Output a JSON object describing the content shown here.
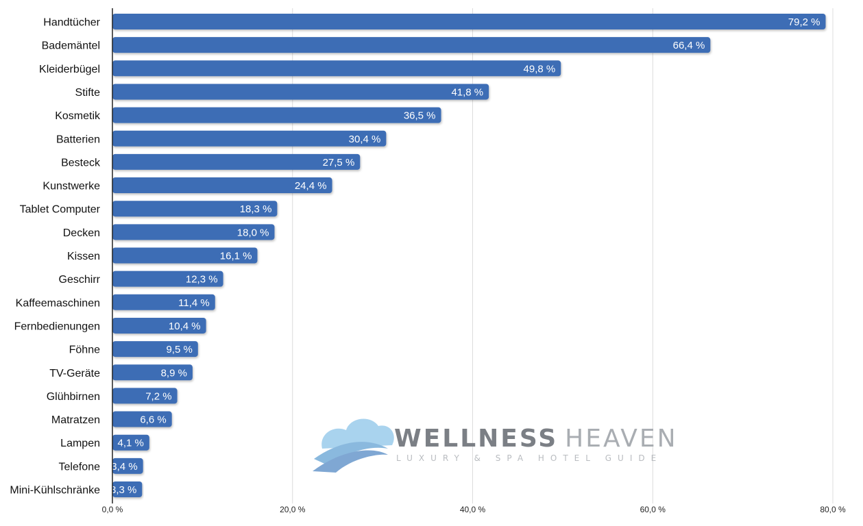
{
  "chart_data": {
    "type": "bar",
    "orientation": "horizontal",
    "categories": [
      "Handtücher",
      "Bademäntel",
      "Kleiderbügel",
      "Stifte",
      "Kosmetik",
      "Batterien",
      "Besteck",
      "Kunstwerke",
      "Tablet Computer",
      "Decken",
      "Kissen",
      "Geschirr",
      "Kaffeemaschinen",
      "Fernbedienungen",
      "Föhne",
      "TV-Geräte",
      "Glühbirnen",
      "Matratzen",
      "Lampen",
      "Telefone",
      "Mini-Kühlschränke"
    ],
    "values": [
      79.2,
      66.4,
      49.8,
      41.8,
      36.5,
      30.4,
      27.5,
      24.4,
      18.3,
      18.0,
      16.1,
      12.3,
      11.4,
      10.4,
      9.5,
      8.9,
      7.2,
      6.6,
      4.1,
      3.4,
      3.3
    ],
    "value_labels": [
      "79,2 %",
      "66,4 %",
      "49,8 %",
      "41,8 %",
      "36,5 %",
      "30,4 %",
      "27,5 %",
      "24,4 %",
      "18,3 %",
      "18,0 %",
      "16,1 %",
      "12,3 %",
      "11,4 %",
      "10,4 %",
      "9,5 %",
      "8,9 %",
      "7,2 %",
      "6,6 %",
      "4,1 %",
      "3,4 %",
      "3,3 %"
    ],
    "x_ticks": [
      0,
      20,
      40,
      60,
      80
    ],
    "x_tick_labels": [
      "0,0 %",
      "20,0 %",
      "40,0 %",
      "60,0 %",
      "80,0 %"
    ],
    "xlim": [
      0,
      80
    ],
    "grid": true,
    "bar_color": "#3e6db5"
  },
  "watermark": {
    "title_a": "WELLNESS",
    "title_b": "HEAVEN",
    "subtitle": "LUXURY & SPA HOTEL GUIDE"
  }
}
